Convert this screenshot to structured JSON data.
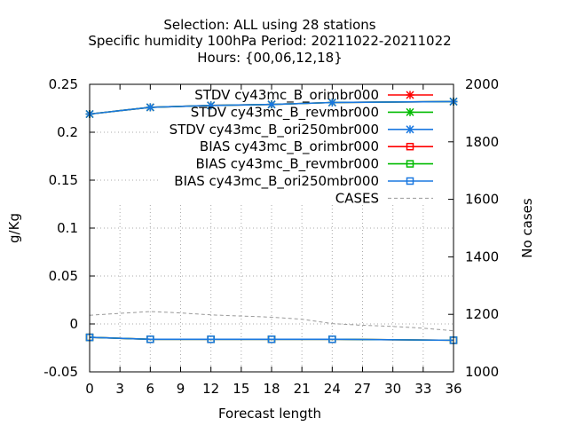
{
  "chart_data": {
    "type": "line",
    "title_lines": [
      "Selection: ALL using    28 stations",
      "Specific humidity 100hPa   Period: 20211022-20211022",
      "Hours: {00,06,12,18}"
    ],
    "xlabel": "Forecast length",
    "ylabel": "g/Kg",
    "y2label": "No cases",
    "xlim": [
      0,
      36
    ],
    "ylim": [
      -0.05,
      0.25
    ],
    "y2lim": [
      1000,
      2000
    ],
    "xticks": [
      "0",
      "3",
      "6",
      "9",
      "12",
      "15",
      "18",
      "21",
      "24",
      "27",
      "30",
      "33",
      "36"
    ],
    "yticks": [
      "-0.05",
      "0",
      "0.05",
      "0.1",
      "0.15",
      "0.2",
      "0.25"
    ],
    "y2ticks": [
      "1000",
      "1200",
      "1400",
      "1600",
      "1800",
      "2000"
    ],
    "grid": true,
    "legend_position": "top-right",
    "series": [
      {
        "name": "STDV cy43mc_B_orimbr000",
        "color": "#ff0000",
        "marker": "star",
        "axis": "y",
        "x": [
          0,
          6,
          12,
          18,
          24,
          36
        ],
        "values": [
          0.219,
          0.226,
          0.228,
          0.229,
          0.231,
          0.232
        ]
      },
      {
        "name": "STDV cy43mc_B_revmbr000",
        "color": "#00bb00",
        "marker": "star",
        "axis": "y",
        "x": [
          0,
          6,
          12,
          18,
          24,
          36
        ],
        "values": [
          0.219,
          0.226,
          0.228,
          0.229,
          0.231,
          0.232
        ]
      },
      {
        "name": "STDV cy43mc_B_ori250mbr000",
        "color": "#1a78e0",
        "marker": "star",
        "axis": "y",
        "x": [
          0,
          6,
          12,
          18,
          24,
          36
        ],
        "values": [
          0.219,
          0.226,
          0.228,
          0.229,
          0.231,
          0.232
        ]
      },
      {
        "name": "BIAS cy43mc_B_orimbr000",
        "color": "#ff0000",
        "marker": "square",
        "axis": "y",
        "x": [
          0,
          6,
          12,
          18,
          24,
          36
        ],
        "values": [
          -0.014,
          -0.016,
          -0.016,
          -0.016,
          -0.016,
          -0.017
        ]
      },
      {
        "name": "BIAS cy43mc_B_revmbr000",
        "color": "#00bb00",
        "marker": "square",
        "axis": "y",
        "x": [
          0,
          6,
          12,
          18,
          24,
          36
        ],
        "values": [
          -0.014,
          -0.016,
          -0.016,
          -0.016,
          -0.016,
          -0.017
        ]
      },
      {
        "name": "BIAS cy43mc_B_ori250mbr000",
        "color": "#1a78e0",
        "marker": "square",
        "axis": "y",
        "x": [
          0,
          6,
          12,
          18,
          24,
          36
        ],
        "values": [
          -0.014,
          -0.016,
          -0.016,
          -0.016,
          -0.016,
          -0.017
        ]
      },
      {
        "name": "CASES",
        "color": "#999999",
        "marker": "none",
        "axis": "y2",
        "dashed": true,
        "x": [
          0,
          6,
          9,
          12,
          18,
          21,
          24,
          27,
          30,
          33,
          36
        ],
        "values": [
          1197,
          1210,
          1205,
          1198,
          1190,
          1183,
          1168,
          1162,
          1158,
          1152,
          1143
        ]
      }
    ]
  }
}
